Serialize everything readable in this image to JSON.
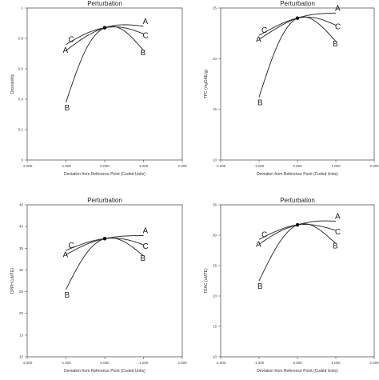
{
  "chart_data": [
    {
      "type": "line",
      "title": "Perturbation",
      "xlabel": "Deviation from Reference Point (Coded Units)",
      "ylabel": "Desirability",
      "xlim": [
        -2,
        2
      ],
      "ylim": [
        0,
        1
      ],
      "xticks": [
        "-2.000",
        "-1.000",
        "0.000",
        "1.000",
        "2.000"
      ],
      "yticks": [
        "0",
        "0.2",
        "0.4",
        "0.6",
        "0.8",
        "1"
      ],
      "reference_point": {
        "x": 0,
        "y": 0.87
      },
      "series": [
        {
          "name": "A",
          "x": [
            -1,
            -0.5,
            0,
            0.5,
            1
          ],
          "y": [
            0.72,
            0.81,
            0.87,
            0.89,
            0.88
          ]
        },
        {
          "name": "C",
          "x": [
            -1,
            -0.5,
            0,
            0.5,
            1
          ],
          "y": [
            0.76,
            0.83,
            0.87,
            0.87,
            0.83
          ]
        },
        {
          "name": "B",
          "x": [
            -1,
            -0.5,
            0,
            0.5,
            1
          ],
          "y": [
            0.38,
            0.72,
            0.87,
            0.85,
            0.72
          ]
        }
      ]
    },
    {
      "type": "line",
      "title": "Perturbation",
      "xlabel": "Deviation from Reference Point (Coded Units)",
      "ylabel": "TPC (mgGAE/g)",
      "xlim": [
        -2,
        2
      ],
      "ylim": [
        10,
        25
      ],
      "xticks": [
        "-2.000",
        "-1.000",
        "0.000",
        "1.000",
        "2.000"
      ],
      "yticks": [
        "10",
        "15",
        "20",
        "25"
      ],
      "reference_point": {
        "x": 0,
        "y": 24
      },
      "series": [
        {
          "name": "A",
          "x": [
            -1,
            -0.5,
            0,
            0.5,
            1
          ],
          "y": [
            21.9,
            23.1,
            24.0,
            24.4,
            24.5
          ]
        },
        {
          "name": "C",
          "x": [
            -1,
            -0.5,
            0,
            0.5,
            1
          ],
          "y": [
            22.3,
            23.3,
            24.0,
            24.0,
            23.3
          ]
        },
        {
          "name": "B",
          "x": [
            -1,
            -0.5,
            0,
            0.5,
            1
          ],
          "y": [
            16.2,
            21.5,
            24.0,
            23.6,
            21.7
          ]
        }
      ]
    },
    {
      "type": "line",
      "title": "Perturbation",
      "xlabel": "Deviation from Reference Point (Coded Units)",
      "ylabel": "DPPH (uMTE)",
      "xlim": [
        -2,
        2
      ],
      "ylim": [
        10,
        45
      ],
      "xticks": [
        "-2.000",
        "-1.000",
        "0.000",
        "1.000",
        "2.000"
      ],
      "yticks": [
        "10",
        "15",
        "20",
        "25",
        "30",
        "35",
        "40",
        "45"
      ],
      "reference_point": {
        "x": 0,
        "y": 37.2
      },
      "series": [
        {
          "name": "A",
          "x": [
            -1,
            -0.5,
            0,
            0.5,
            1
          ],
          "y": [
            33.5,
            35.8,
            37.2,
            37.8,
            37.9
          ]
        },
        {
          "name": "C",
          "x": [
            -1,
            -0.5,
            0,
            0.5,
            1
          ],
          "y": [
            34.5,
            36.2,
            37.2,
            37.1,
            35.8
          ]
        },
        {
          "name": "B",
          "x": [
            -1,
            -0.5,
            0,
            0.5,
            1
          ],
          "y": [
            25.5,
            33.5,
            37.2,
            36.5,
            33.2
          ]
        }
      ]
    },
    {
      "type": "line",
      "title": "Perturbation",
      "xlabel": "Deviation from Reference Point (Coded Units)",
      "ylabel": "TEAC (uMTE)",
      "xlim": [
        -2,
        2
      ],
      "ylim": [
        10,
        35
      ],
      "xticks": [
        "-2.000",
        "-1.000",
        "0.000",
        "1.000",
        "2.000"
      ],
      "yticks": [
        "10",
        "15",
        "20",
        "25",
        "30",
        "35"
      ],
      "reference_point": {
        "x": 0,
        "y": 31.7
      },
      "series": [
        {
          "name": "A",
          "x": [
            -1,
            -0.5,
            0,
            0.5,
            1
          ],
          "y": [
            28.5,
            30.5,
            31.7,
            32.3,
            32.3
          ]
        },
        {
          "name": "C",
          "x": [
            -1,
            -0.5,
            0,
            0.5,
            1
          ],
          "y": [
            29.3,
            30.8,
            31.7,
            31.6,
            30.8
          ]
        },
        {
          "name": "B",
          "x": [
            -1,
            -0.5,
            0,
            0.5,
            1
          ],
          "y": [
            22.5,
            28.5,
            31.7,
            31.2,
            28.6
          ]
        }
      ]
    }
  ]
}
